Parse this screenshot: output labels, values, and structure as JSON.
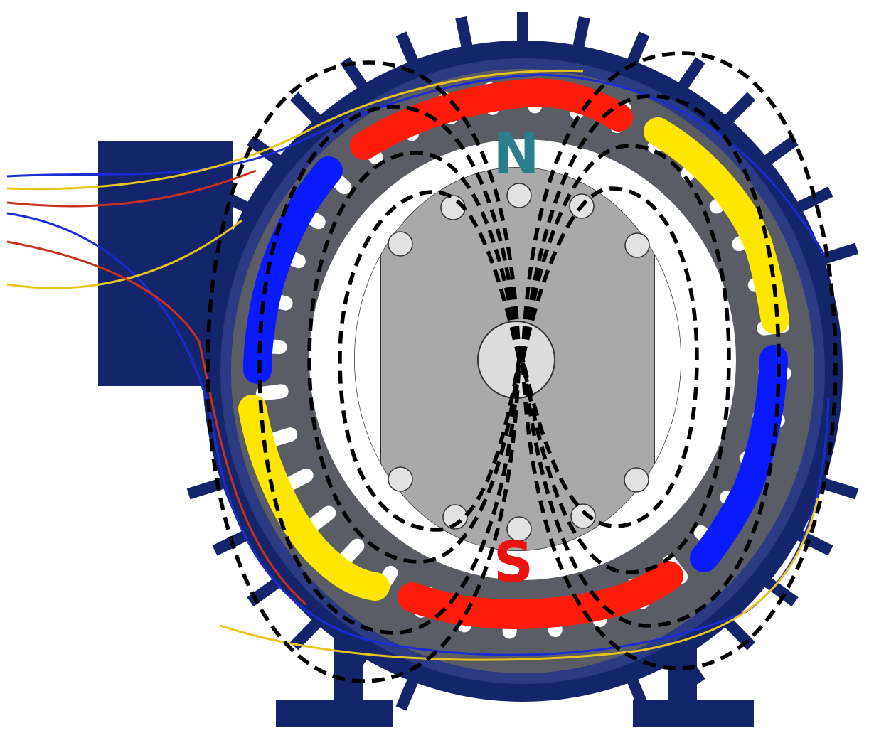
{
  "labels": {
    "north": "N",
    "south": "S"
  },
  "colors": {
    "housing": "#15256b",
    "stator": "#5a5c66",
    "stator_dark": "#4a4c56",
    "slot": "#ffffff",
    "rotor": "#a9a9a9",
    "coil_red": "#ff1a0a",
    "coil_blue": "#0a1aff",
    "coil_yellow": "#ffe600",
    "flux_line": "#000000",
    "north_label": "#2a7f8f",
    "south_label": "#ee1111"
  },
  "icons": {
    "housing": "motor-housing-icon",
    "rotor": "rotor-icon",
    "shaft": "shaft-icon"
  }
}
